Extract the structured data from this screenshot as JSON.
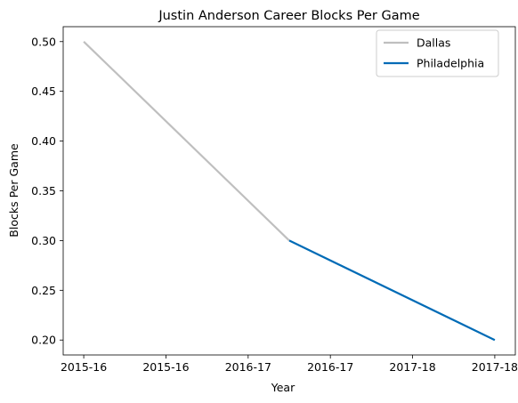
{
  "chart_data": {
    "type": "line",
    "title": "Justin Anderson  Career Blocks Per Game",
    "xlabel": "Year",
    "ylabel": "Blocks Per Game",
    "x_tick_labels": [
      "2015-16",
      "2015-16",
      "2016-17",
      "2016-17",
      "2017-18",
      "2017-18"
    ],
    "xlim": [
      -0.1,
      2.1
    ],
    "ylim": [
      0.185,
      0.515
    ],
    "y_ticks": [
      0.2,
      0.25,
      0.3,
      0.35,
      0.4,
      0.45,
      0.5
    ],
    "y_tick_labels": [
      "0.20",
      "0.25",
      "0.30",
      "0.35",
      "0.40",
      "0.45",
      "0.50"
    ],
    "grid": false,
    "legend_position": "top-right",
    "series": [
      {
        "name": "Dallas",
        "color": "#bfbfbf",
        "x": [
          0,
          1
        ],
        "y": [
          0.5,
          0.3
        ]
      },
      {
        "name": "Philadelphia",
        "color": "#006bb6",
        "x": [
          1,
          2
        ],
        "y": [
          0.3,
          0.2
        ]
      }
    ]
  }
}
